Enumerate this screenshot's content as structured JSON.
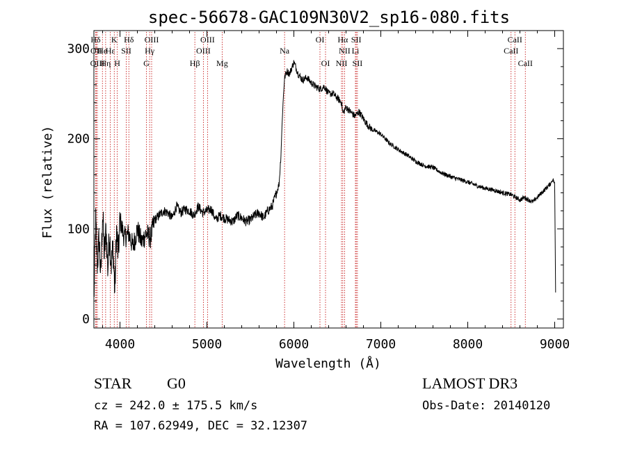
{
  "chart_data": {
    "type": "line",
    "title": "spec-56678-GAC109N30V2_sp16-080.fits",
    "xlabel": "Wavelength (Å)",
    "ylabel": "Flux (relative)",
    "xlim": [
      3700,
      9100
    ],
    "ylim": [
      -10,
      320
    ],
    "xticks": [
      4000,
      5000,
      6000,
      7000,
      8000,
      9000
    ],
    "xtick_labels": [
      "4000",
      "5000",
      "6000",
      "7000",
      "8000",
      "9000"
    ],
    "yticks": [
      0,
      100,
      200,
      300
    ],
    "ytick_labels": [
      "0",
      "100",
      "200",
      "300"
    ],
    "grid": false,
    "series": [
      {
        "name": "flux",
        "x": [
          3700,
          3720,
          3740,
          3760,
          3780,
          3800,
          3820,
          3840,
          3860,
          3880,
          3900,
          3920,
          3940,
          3960,
          3980,
          4000,
          4050,
          4100,
          4150,
          4200,
          4250,
          4300,
          4350,
          4400,
          4450,
          4500,
          4550,
          4600,
          4650,
          4700,
          4750,
          4800,
          4850,
          4900,
          4950,
          5000,
          5050,
          5100,
          5150,
          5200,
          5250,
          5300,
          5350,
          5400,
          5450,
          5500,
          5550,
          5600,
          5650,
          5700,
          5750,
          5800,
          5830,
          5850,
          5870,
          5890,
          5900,
          5920,
          5950,
          6000,
          6050,
          6100,
          6150,
          6200,
          6250,
          6300,
          6350,
          6400,
          6450,
          6500,
          6550,
          6563,
          6600,
          6650,
          6700,
          6750,
          6800,
          6850,
          6900,
          6950,
          7000,
          7100,
          7200,
          7300,
          7400,
          7500,
          7600,
          7700,
          7800,
          7900,
          8000,
          8100,
          8200,
          8300,
          8400,
          8500,
          8550,
          8600,
          8650,
          8700,
          8750,
          8800,
          8850,
          8900,
          8950,
          8980,
          9000,
          9010
        ],
        "values": [
          20,
          110,
          60,
          90,
          45,
          120,
          70,
          100,
          55,
          95,
          60,
          80,
          30,
          100,
          70,
          110,
          90,
          95,
          80,
          100,
          85,
          95,
          90,
          110,
          115,
          120,
          118,
          112,
          125,
          118,
          122,
          120,
          115,
          125,
          118,
          120,
          122,
          110,
          115,
          112,
          110,
          108,
          115,
          112,
          108,
          110,
          115,
          118,
          112,
          120,
          125,
          140,
          150,
          180,
          230,
          265,
          270,
          275,
          272,
          285,
          272,
          265,
          268,
          262,
          258,
          255,
          258,
          250,
          250,
          245,
          240,
          228,
          235,
          230,
          225,
          230,
          222,
          215,
          210,
          208,
          205,
          195,
          188,
          182,
          175,
          170,
          168,
          162,
          158,
          155,
          152,
          148,
          145,
          143,
          140,
          138,
          135,
          132,
          135,
          132,
          130,
          135,
          140,
          145,
          150,
          155,
          150,
          30
        ]
      }
    ],
    "lines": [
      {
        "label": "Hδ",
        "x": 3720,
        "row": 1
      },
      {
        "label": "OII",
        "x": 3727,
        "row": 2
      },
      {
        "label": "OIII",
        "x": 3740,
        "row": 3
      },
      {
        "label": "He",
        "x": 3798,
        "row": 2
      },
      {
        "label": "Hη",
        "x": 3835,
        "row": 3
      },
      {
        "label": "K",
        "x": 3934,
        "row": 1
      },
      {
        "label": "Hε",
        "x": 3889,
        "row": 2
      },
      {
        "label": "H",
        "x": 3969,
        "row": 3
      },
      {
        "label": "SII",
        "x": 4072,
        "row": 2
      },
      {
        "label": "Hδ",
        "x": 4102,
        "row": 1
      },
      {
        "label": "OIII",
        "x": 4364,
        "row": 1
      },
      {
        "label": "Hγ",
        "x": 4341,
        "row": 2
      },
      {
        "label": "G",
        "x": 4304,
        "row": 3
      },
      {
        "label": "Hβ",
        "x": 4861,
        "row": 3
      },
      {
        "label": "OIII",
        "x": 5007,
        "row": 1
      },
      {
        "label": "OIII",
        "x": 4959,
        "row": 2
      },
      {
        "label": "Mg",
        "x": 5175,
        "row": 3
      },
      {
        "label": "Na",
        "x": 5893,
        "row": 2
      },
      {
        "label": "OI",
        "x": 6300,
        "row": 1
      },
      {
        "label": "OI",
        "x": 6364,
        "row": 3
      },
      {
        "label": "Hα",
        "x": 6563,
        "row": 1
      },
      {
        "label": "NII",
        "x": 6583,
        "row": 2
      },
      {
        "label": "NII",
        "x": 6548,
        "row": 3
      },
      {
        "label": "SII",
        "x": 6717,
        "row": 1
      },
      {
        "label": "Li",
        "x": 6708,
        "row": 2
      },
      {
        "label": "SII",
        "x": 6731,
        "row": 3
      },
      {
        "label": "CaII",
        "x": 8542,
        "row": 1
      },
      {
        "label": "CaII",
        "x": 8498,
        "row": 2
      },
      {
        "label": "CaII",
        "x": 8662,
        "row": 3
      }
    ]
  },
  "info": {
    "class_label": "STAR",
    "subclass": "G0",
    "survey": "LAMOST DR3",
    "cz": "cz = 242.0 ± 175.5 km/s",
    "obs_date": "Obs-Date: 20140120",
    "radec": "RA = 107.62949, DEC =  32.12307"
  },
  "colors": {
    "axis": "#000000",
    "spectrum": "#000000",
    "line_marker": "#c00000"
  }
}
